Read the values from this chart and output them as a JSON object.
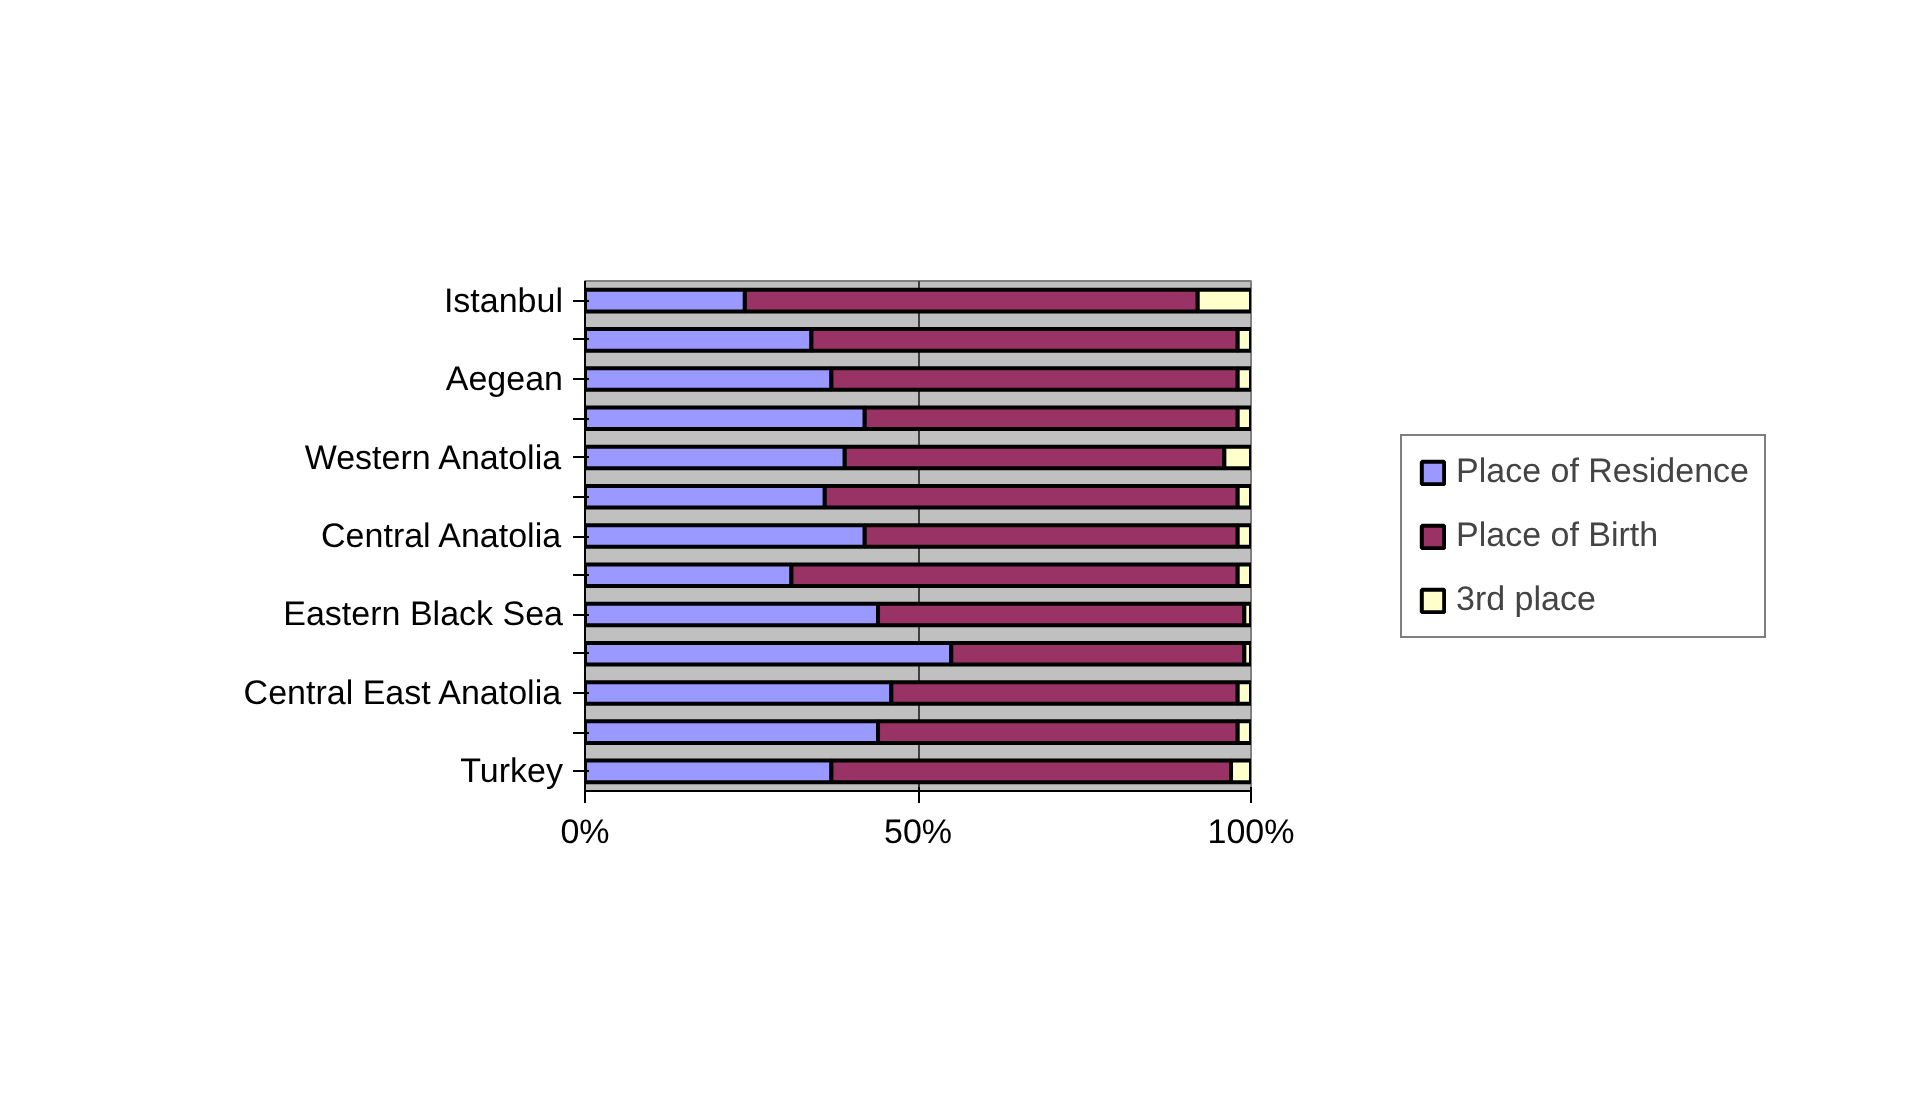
{
  "chart_data": {
    "type": "bar",
    "orientation": "horizontal",
    "stacked": true,
    "categories": [
      "Istanbul",
      null,
      "Aegean",
      null,
      "Western Anatolia",
      null,
      "Central Anatolia",
      null,
      "Eastern Black Sea",
      null,
      "Central East Anatolia",
      null,
      "Turkey"
    ],
    "series": [
      {
        "name": "Place of Residence",
        "color": "#9999ff",
        "values": [
          24,
          34,
          37,
          42,
          39,
          36,
          42,
          31,
          44,
          55,
          46,
          44,
          37
        ]
      },
      {
        "name": "Place of Birth",
        "color": "#993366",
        "values": [
          68,
          64,
          61,
          56,
          57,
          62,
          56,
          67,
          55,
          44,
          52,
          54,
          60
        ]
      },
      {
        "name": "3rd place",
        "color": "#ffffcc",
        "values": [
          8,
          2,
          2,
          2,
          4,
          2,
          2,
          2,
          1,
          1,
          2,
          2,
          3
        ]
      }
    ],
    "xlim": [
      0,
      100
    ],
    "xticks": [
      {
        "value": 0,
        "label": "0%"
      },
      {
        "value": 50,
        "label": "50%"
      },
      {
        "value": 100,
        "label": "100%"
      }
    ],
    "grid": "x",
    "legend": "right"
  }
}
